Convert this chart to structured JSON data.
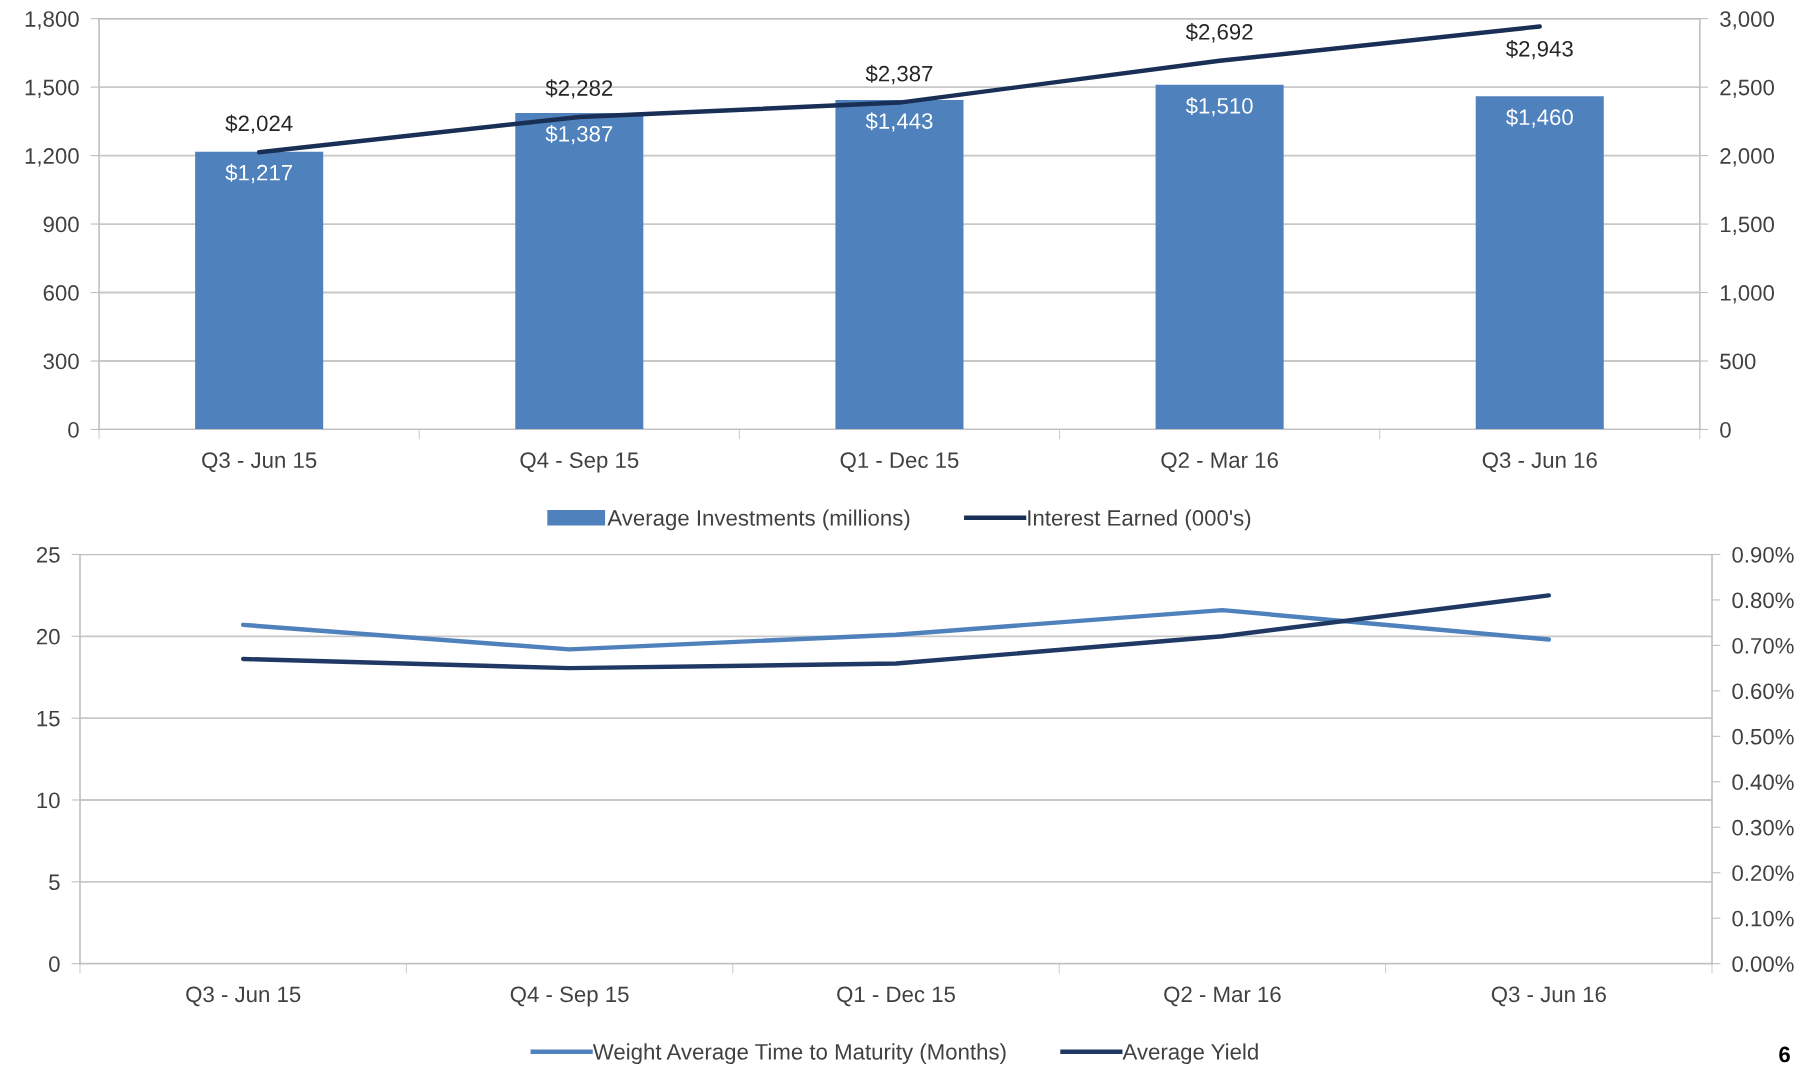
{
  "chart_data": [
    {
      "type": "bar",
      "categories": [
        "Q3 - Jun 15",
        "Q4 - Sep 15",
        "Q1 - Dec 15",
        "Q2 - Mar 16",
        "Q3 - Jun 16"
      ],
      "series": [
        {
          "name": "Average Investments (millions)",
          "type": "bar",
          "color": "#4f81bd",
          "values": [
            1217,
            1387,
            1443,
            1510,
            1460
          ],
          "value_labels": [
            "$1,217",
            "$1,387",
            "$1,443",
            "$1,510",
            "$1,460"
          ]
        },
        {
          "name": "Interest Earned (000's)",
          "type": "line",
          "axis": "y2",
          "color": "#1a2f55",
          "values": [
            2024,
            2282,
            2387,
            2692,
            2943
          ],
          "value_labels": [
            "$2,024",
            "$2,282",
            "$2,387",
            "$2,692",
            "$2,943"
          ]
        }
      ],
      "ylim": [
        0,
        1800
      ],
      "yticks": [
        0,
        300,
        600,
        900,
        {
          "value": 1200,
          "label": "1,200"
        },
        {
          "value": 1500,
          "label": "1,500"
        },
        {
          "value": 1800,
          "label": "1,800"
        }
      ],
      "y2lim": [
        0,
        3000
      ],
      "y2ticks": [
        0,
        500,
        {
          "value": 1000,
          "label": "1,000"
        },
        {
          "value": 1500,
          "label": "1,500"
        },
        {
          "value": 2000,
          "label": "2,000"
        },
        {
          "value": 2500,
          "label": "2,500"
        },
        {
          "value": 3000,
          "label": "3,000"
        }
      ],
      "grid": "y",
      "legend": "bottom"
    },
    {
      "type": "line",
      "categories": [
        "Q3 - Jun 15",
        "Q4 - Sep 15",
        "Q1 - Dec 15",
        "Q2 - Mar 16",
        "Q3 - Jun 16"
      ],
      "series": [
        {
          "name": "Weight Average Time to Maturity (Months)",
          "color": "#4f81bd",
          "values": [
            20.7,
            19.2,
            20.1,
            21.6,
            19.8
          ]
        },
        {
          "name": "Average Yield",
          "axis": "y2",
          "color": "#1f3864",
          "values": [
            0.67,
            0.65,
            0.66,
            0.72,
            0.81
          ]
        }
      ],
      "ylim": [
        0,
        25
      ],
      "yticks": [
        0,
        5,
        10,
        15,
        20,
        25
      ],
      "y2lim": [
        0,
        0.9
      ],
      "y2ticks": [
        {
          "value": 0,
          "label": "0.00%"
        },
        {
          "value": 0.1,
          "label": "0.10%"
        },
        {
          "value": 0.2,
          "label": "0.20%"
        },
        {
          "value": 0.3,
          "label": "0.30%"
        },
        {
          "value": 0.4,
          "label": "0.40%"
        },
        {
          "value": 0.5,
          "label": "0.50%"
        },
        {
          "value": 0.6,
          "label": "0.60%"
        },
        {
          "value": 0.7,
          "label": "0.70%"
        },
        {
          "value": 0.8,
          "label": "0.80%"
        },
        {
          "value": 0.9,
          "label": "0.90%"
        }
      ],
      "grid": "y",
      "legend": "bottom",
      "annotations": [
        "6"
      ]
    }
  ]
}
